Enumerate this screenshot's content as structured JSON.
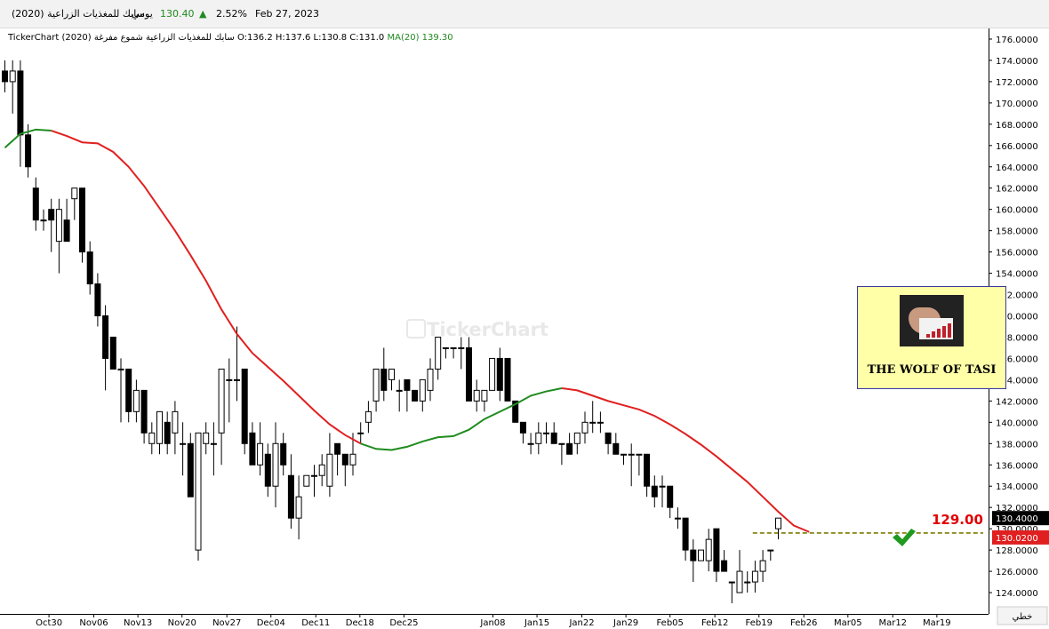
{
  "header": {
    "symbol": "سابك للمغذيات الزراعية (2020)",
    "period": "يومي",
    "last": "130.40",
    "change_pct": "2.52%",
    "date": "Feb 27, 2023"
  },
  "info_line": {
    "source": "TickerChart",
    "description": "سابك للمغذيات الزراعية شموع مفرغة (2020)",
    "ohlc": "O:136.2 H:137.6 L:130.8 C:131.0",
    "ma_label": "MA(20)",
    "ma_value": "139.30"
  },
  "watermark": "TickerChart",
  "logo": {
    "caption": "THE WOLF OF TASI"
  },
  "annotation": {
    "level_label": "129.00",
    "dashed_level": 129.6,
    "check_icon": "check-mark-icon"
  },
  "price_tags": {
    "last_close": "130.4000",
    "line_level": "130.0200"
  },
  "scale_type_label": "خطي",
  "colors": {
    "ma_above": "#e02020",
    "ma_below": "#1e8c1e",
    "candle": "#000000",
    "dashed_line": "#7a7a00",
    "checkmark": "#1f9a1f",
    "level_text": "#e00000",
    "tag_dark": "#000000",
    "tag_red": "#e02020"
  },
  "chart_data": {
    "type": "candlestick",
    "y_axis": {
      "min": 122,
      "max": 177,
      "ticks": [
        "124.0000",
        "126.0000",
        "128.0000",
        "130.0000",
        "132.0000",
        "134.0000",
        "136.0000",
        "138.0000",
        "140.0000",
        "142.0000",
        "144.0000",
        "146.0000",
        "148.0000",
        "150.0000",
        "152.0000",
        "154.0000",
        "156.0000",
        "158.0000",
        "160.0000",
        "162.0000",
        "164.0000",
        "166.0000",
        "168.0000",
        "170.0000",
        "172.0000",
        "174.0000",
        "176.0000"
      ]
    },
    "x_labels": [
      {
        "label": "Oct30",
        "idx": 5.7
      },
      {
        "label": "Nov06",
        "idx": 11.5
      },
      {
        "label": "Nov13",
        "idx": 17.2
      },
      {
        "label": "Nov20",
        "idx": 22.9
      },
      {
        "label": "Nov27",
        "idx": 28.7
      },
      {
        "label": "Dec04",
        "idx": 34.4
      },
      {
        "label": "Dec11",
        "idx": 40.2
      },
      {
        "label": "Dec18",
        "idx": 45.9
      },
      {
        "label": "Dec25",
        "idx": 51.6
      },
      {
        "label": "Jan08",
        "idx": 63.1
      },
      {
        "label": "Jan15",
        "idx": 68.8
      },
      {
        "label": "Jan22",
        "idx": 74.6
      },
      {
        "label": "Jan29",
        "idx": 80.3
      },
      {
        "label": "Feb05",
        "idx": 86.0
      },
      {
        "label": "Feb12",
        "idx": 91.8
      },
      {
        "label": "Feb19",
        "idx": 97.5
      },
      {
        "label": "Feb26",
        "idx": 103.3
      },
      {
        "label": "Mar05",
        "idx": 109.0
      },
      {
        "label": "Mar12",
        "idx": 114.8
      },
      {
        "label": "Mar19",
        "idx": 120.5
      }
    ],
    "candles": [
      [
        173.0,
        174.0,
        171.0,
        172.0
      ],
      [
        172.0,
        174.0,
        169.0,
        173.0
      ],
      [
        173.0,
        174.0,
        164.0,
        167.0
      ],
      [
        167.0,
        168.0,
        163.0,
        164.0
      ],
      [
        162.0,
        163.0,
        158.0,
        159.0
      ],
      [
        159.0,
        160.0,
        158.0,
        159.0
      ],
      [
        160.0,
        161.0,
        156.0,
        159.0
      ],
      [
        157.0,
        161.0,
        154.0,
        160.0
      ],
      [
        159.0,
        161.0,
        157.0,
        157.0
      ],
      [
        161.0,
        162.0,
        159.0,
        162.0
      ],
      [
        162.0,
        162.0,
        155.0,
        156.0
      ],
      [
        156.0,
        157.0,
        152.0,
        153.0
      ],
      [
        153.0,
        154.0,
        149.0,
        150.0
      ],
      [
        150.0,
        151.0,
        143.0,
        146.0
      ],
      [
        148.0,
        148.0,
        145.0,
        145.0
      ],
      [
        145.0,
        146.0,
        140.0,
        145.0
      ],
      [
        145.0,
        145.0,
        140.0,
        141.0
      ],
      [
        141.0,
        144.0,
        140.0,
        143.0
      ],
      [
        143.0,
        143.0,
        138.0,
        139.0
      ],
      [
        138.0,
        140.0,
        137.0,
        139.0
      ],
      [
        138.0,
        141.0,
        137.0,
        141.0
      ],
      [
        140.0,
        141.0,
        137.0,
        138.0
      ],
      [
        139.0,
        142.0,
        137.0,
        141.0
      ],
      [
        138.0,
        140.0,
        135.0,
        138.0
      ],
      [
        138.0,
        139.0,
        133.0,
        133.0
      ],
      [
        128.0,
        139.0,
        127.0,
        139.0
      ],
      [
        138.0,
        140.0,
        137.0,
        139.0
      ],
      [
        138.0,
        140.0,
        135.0,
        138.0
      ],
      [
        139.0,
        145.0,
        136.0,
        145.0
      ],
      [
        144.0,
        146.0,
        140.0,
        144.0
      ],
      [
        144.0,
        149.0,
        142.0,
        144.0
      ],
      [
        145.0,
        145.0,
        137.0,
        138.0
      ],
      [
        139.0,
        140.0,
        136.0,
        136.0
      ],
      [
        136.0,
        140.0,
        135.0,
        138.0
      ],
      [
        137.0,
        138.0,
        133.0,
        134.0
      ],
      [
        134.0,
        140.0,
        132.0,
        138.0
      ],
      [
        138.0,
        139.0,
        135.0,
        136.0
      ],
      [
        135.0,
        137.0,
        130.0,
        131.0
      ],
      [
        131.0,
        135.0,
        129.0,
        133.0
      ],
      [
        134.0,
        135.0,
        134.0,
        135.0
      ],
      [
        135.0,
        136.0,
        133.0,
        135.0
      ],
      [
        135.0,
        137.0,
        134.0,
        136.0
      ],
      [
        134.0,
        139.0,
        133.0,
        137.0
      ],
      [
        138.0,
        138.0,
        135.0,
        137.0
      ],
      [
        137.0,
        137.0,
        134.0,
        136.0
      ],
      [
        136.0,
        139.0,
        135.0,
        137.0
      ],
      [
        139.0,
        140.0,
        138.0,
        139.0
      ],
      [
        140.0,
        142.0,
        139.0,
        141.0
      ],
      [
        142.0,
        145.0,
        141.0,
        145.0
      ],
      [
        145.0,
        147.0,
        142.0,
        143.0
      ],
      [
        144.0,
        145.0,
        143.0,
        145.0
      ],
      [
        143.0,
        144.0,
        141.0,
        143.0
      ],
      [
        144.0,
        144.0,
        141.0,
        143.0
      ],
      [
        143.0,
        143.0,
        142.0,
        142.0
      ],
      [
        142.0,
        144.0,
        141.0,
        144.0
      ],
      [
        143.0,
        146.0,
        142.0,
        145.0
      ],
      [
        145.0,
        148.0,
        144.0,
        148.0
      ],
      [
        147.0,
        147.0,
        146.0,
        147.0
      ],
      [
        147.0,
        147.0,
        146.0,
        147.0
      ],
      [
        147.0,
        148.0,
        145.0,
        147.0
      ],
      [
        147.0,
        148.0,
        142.0,
        142.0
      ],
      [
        142.0,
        144.0,
        141.0,
        143.0
      ],
      [
        142.0,
        143.0,
        141.0,
        143.0
      ],
      [
        143.0,
        146.0,
        143.0,
        146.0
      ],
      [
        146.0,
        147.0,
        142.0,
        143.0
      ],
      [
        146.0,
        146.0,
        142.0,
        142.0
      ],
      [
        142.0,
        142.0,
        140.0,
        140.0
      ],
      [
        140.0,
        140.0,
        138.0,
        139.0
      ],
      [
        138.0,
        139.0,
        137.0,
        138.0
      ],
      [
        138.0,
        140.0,
        137.0,
        139.0
      ],
      [
        139.0,
        140.0,
        138.0,
        139.0
      ],
      [
        139.0,
        140.0,
        138.0,
        138.0
      ],
      [
        138.0,
        138.0,
        136.0,
        138.0
      ],
      [
        138.0,
        139.0,
        137.0,
        137.0
      ],
      [
        138.0,
        139.0,
        137.0,
        139.0
      ],
      [
        139.0,
        141.0,
        138.0,
        140.0
      ],
      [
        140.0,
        142.0,
        139.0,
        140.0
      ],
      [
        140.0,
        141.0,
        139.0,
        140.0
      ],
      [
        139.0,
        139.0,
        137.0,
        138.0
      ],
      [
        138.0,
        139.0,
        137.0,
        137.0
      ],
      [
        137.0,
        137.0,
        136.0,
        137.0
      ],
      [
        137.0,
        138.0,
        134.0,
        137.0
      ],
      [
        137.0,
        137.0,
        135.0,
        137.0
      ],
      [
        137.0,
        137.0,
        133.0,
        134.0
      ],
      [
        134.0,
        135.0,
        132.0,
        133.0
      ],
      [
        134.0,
        135.0,
        132.0,
        134.0
      ],
      [
        134.0,
        134.0,
        131.0,
        132.0
      ],
      [
        131.0,
        132.0,
        130.0,
        131.0
      ],
      [
        131.0,
        131.0,
        127.0,
        128.0
      ],
      [
        128.0,
        129.0,
        125.0,
        127.0
      ],
      [
        127.0,
        128.0,
        127.0,
        128.0
      ],
      [
        127.0,
        130.0,
        126.0,
        129.0
      ],
      [
        130.0,
        130.0,
        125.0,
        126.0
      ],
      [
        127.0,
        128.0,
        126.0,
        126.0
      ],
      [
        125.0,
        125.0,
        123.0,
        125.0
      ],
      [
        124.0,
        128.0,
        124.0,
        126.0
      ],
      [
        125.0,
        126.0,
        124.0,
        125.0
      ],
      [
        125.0,
        127.0,
        124.0,
        126.0
      ],
      [
        126.0,
        128.0,
        125.0,
        127.0
      ],
      [
        128.0,
        128.0,
        127.0,
        128.0
      ],
      [
        130.0,
        131.0,
        129.0,
        131.0
      ]
    ],
    "ma": [
      [
        0,
        165.8
      ],
      [
        2,
        167.1
      ],
      [
        4,
        167.5
      ],
      [
        6,
        167.4
      ],
      [
        8,
        166.9
      ],
      [
        10,
        166.3
      ],
      [
        12,
        166.2
      ],
      [
        14,
        165.4
      ],
      [
        16,
        164.0
      ],
      [
        18,
        162.2
      ],
      [
        20,
        160.1
      ],
      [
        22,
        158.0
      ],
      [
        24,
        155.7
      ],
      [
        26,
        153.3
      ],
      [
        28,
        150.6
      ],
      [
        30,
        148.3
      ],
      [
        32,
        146.5
      ],
      [
        34,
        145.2
      ],
      [
        36,
        143.9
      ],
      [
        38,
        142.5
      ],
      [
        40,
        141.1
      ],
      [
        42,
        139.8
      ],
      [
        44,
        138.8
      ],
      [
        46,
        138.0
      ],
      [
        48,
        137.5
      ],
      [
        50,
        137.4
      ],
      [
        52,
        137.7
      ],
      [
        54,
        138.2
      ],
      [
        56,
        138.6
      ],
      [
        58,
        138.7
      ],
      [
        60,
        139.3
      ],
      [
        62,
        140.3
      ],
      [
        64,
        141.0
      ],
      [
        66,
        141.7
      ],
      [
        68,
        142.5
      ],
      [
        70,
        142.9
      ],
      [
        72,
        143.2
      ],
      [
        74,
        143.0
      ],
      [
        76,
        142.5
      ],
      [
        78,
        142.0
      ],
      [
        80,
        141.6
      ],
      [
        82,
        141.2
      ],
      [
        84,
        140.6
      ],
      [
        86,
        139.8
      ],
      [
        88,
        138.9
      ],
      [
        90,
        137.9
      ],
      [
        92,
        136.8
      ],
      [
        94,
        135.6
      ],
      [
        96,
        134.4
      ],
      [
        98,
        133.0
      ],
      [
        100,
        131.6
      ],
      [
        102,
        130.3
      ],
      [
        104,
        129.7
      ]
    ]
  }
}
